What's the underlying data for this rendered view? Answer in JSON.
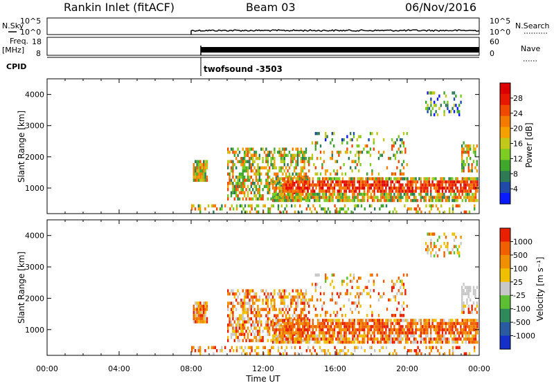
{
  "header": {
    "station": "Rankin Inlet (fitACF)",
    "beam": "Beam 03",
    "date": "06/Nov/2016"
  },
  "top_panels": {
    "nsky_label": "N.Sky",
    "nsky_ticks": [
      "10^5",
      "10^0"
    ],
    "nsearch_label": "N.Search",
    "nsearch_ticks": [
      "10^5",
      "10^0"
    ],
    "freq_label": "Freq.",
    "freq_unit": "[MHz]",
    "freq_ticks": [
      "18",
      "8"
    ],
    "nave_label": "Nave",
    "nave_ticks": [
      "60",
      "0"
    ],
    "cpid_label": "CPID",
    "cpid_value": "twofsound -3503"
  },
  "chart_data": [
    {
      "type": "heatmap",
      "title": "",
      "xlabel": "",
      "ylabel": "Slant Range [km]",
      "x_range_hours": [
        0,
        24
      ],
      "ylim_km": [
        180,
        4500
      ],
      "y_ticks": [
        "1000",
        "2000",
        "3000",
        "4000"
      ],
      "colorbar": {
        "label": "Power [dB]",
        "ticks": [
          "4",
          "8",
          "12",
          "16",
          "20",
          "24",
          "28"
        ],
        "colors": [
          "#0a1cff",
          "#1f4aa8",
          "#2e7a55",
          "#3fa82c",
          "#7ccc22",
          "#c2c81a",
          "#f6a000",
          "#f57a00",
          "#f04a00",
          "#e81800",
          "#dd0000"
        ]
      },
      "data_start_hour": 8
    },
    {
      "type": "heatmap",
      "title": "",
      "xlabel": "Time UT",
      "ylabel": "Slant Range [km]",
      "x_range_hours": [
        0,
        24
      ],
      "ylim_km": [
        180,
        4500
      ],
      "y_ticks": [
        "1000",
        "2000",
        "3000",
        "4000"
      ],
      "colorbar": {
        "label": "Velocity [m s⁻¹]",
        "ticks": [
          "1000",
          "500",
          "100",
          "25",
          "-25",
          "-100",
          "-500",
          "-1000"
        ],
        "colors": [
          "#1430c8",
          "#2a5aa0",
          "#2e8a5a",
          "#5cc032",
          "#c8c8c8",
          "#f0c000",
          "#f09000",
          "#f06000",
          "#e82000"
        ]
      },
      "data_start_hour": 8
    }
  ],
  "time_axis": {
    "label": "Time UT",
    "ticks": [
      "00:00",
      "04:00",
      "08:00",
      "12:00",
      "16:00",
      "20:00",
      "00:00"
    ]
  }
}
